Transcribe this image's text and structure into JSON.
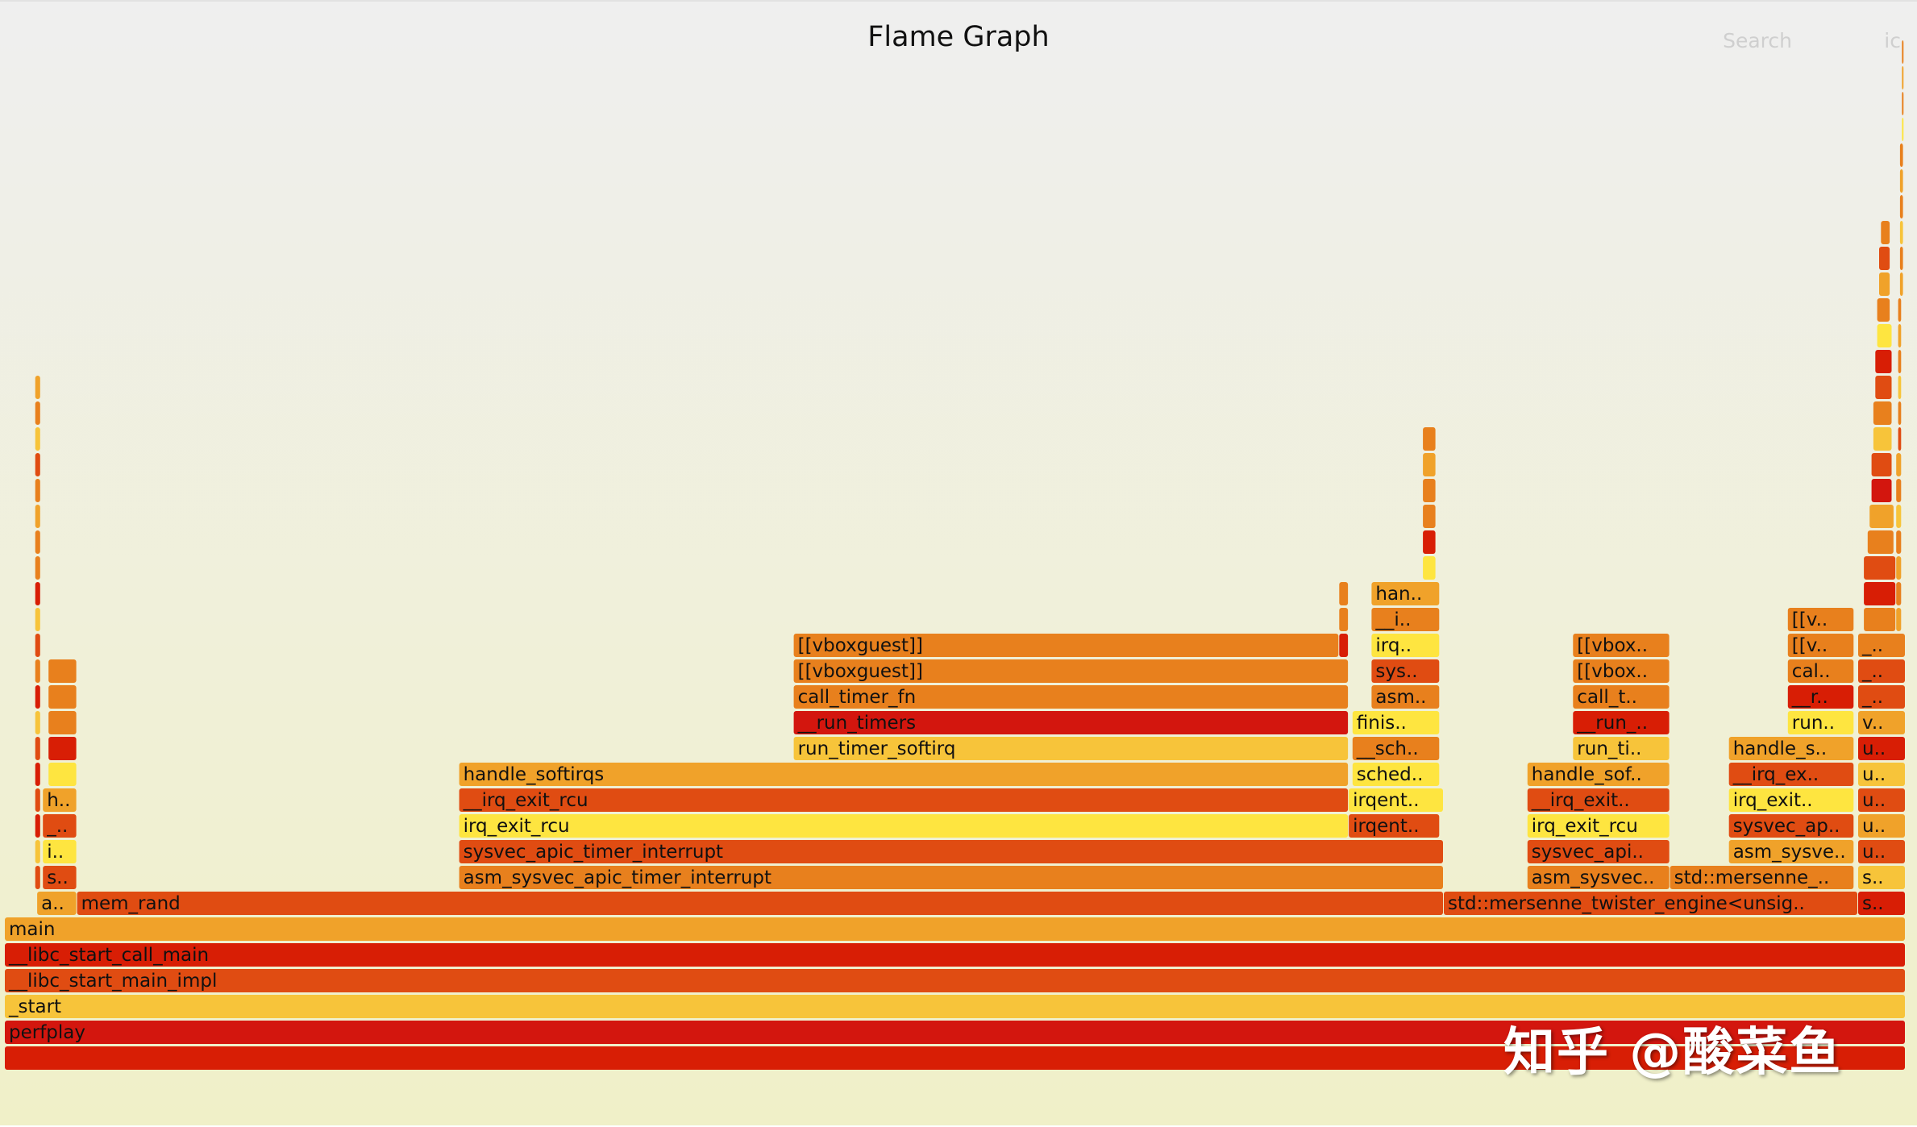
{
  "header": {
    "title": "Flame Graph",
    "search_label": "Search",
    "ic_label": "ic"
  },
  "watermark": "知乎 @酸菜鱼",
  "chart_data": {
    "type": "flamegraph",
    "title": "Flame Graph",
    "x_range": [
      0,
      1000
    ],
    "depth_count": 40,
    "palette": [
      "#d81e05",
      "#e04c12",
      "#e8801d",
      "#f0a22a",
      "#f7c43a",
      "#fee540",
      "#d3160e"
    ],
    "frames": [
      {
        "label": "",
        "start": 0,
        "end": 1000,
        "depth": 0,
        "c": 0
      },
      {
        "label": "perfplay",
        "start": 0,
        "end": 1000,
        "depth": 1,
        "c": 6
      },
      {
        "label": "_start",
        "start": 0,
        "end": 1000,
        "depth": 2,
        "c": 4
      },
      {
        "label": "__libc_start_main_impl",
        "start": 0,
        "end": 1000,
        "depth": 3,
        "c": 1
      },
      {
        "label": "__libc_start_call_main",
        "start": 0,
        "end": 1000,
        "depth": 4,
        "c": 0
      },
      {
        "label": "main",
        "start": 0,
        "end": 1000,
        "depth": 5,
        "c": 3
      },
      {
        "label": "a..",
        "start": 17,
        "end": 38,
        "depth": 6,
        "c": 3
      },
      {
        "label": "mem_rand",
        "start": 38,
        "end": 757,
        "depth": 6,
        "c": 1
      },
      {
        "label": "std::mersenne_twister_engine<unsig..",
        "start": 757,
        "end": 975,
        "depth": 6,
        "c": 1
      },
      {
        "label": "s..",
        "start": 975,
        "end": 1000,
        "depth": 6,
        "c": 0
      },
      {
        "label": "s..",
        "start": 20,
        "end": 38,
        "depth": 7,
        "c": 1
      },
      {
        "label": "i..",
        "start": 20,
        "end": 38,
        "depth": 8,
        "c": 5
      },
      {
        "label": "_..",
        "start": 20,
        "end": 38,
        "depth": 9,
        "c": 1
      },
      {
        "label": "h..",
        "start": 20,
        "end": 38,
        "depth": 10,
        "c": 3
      },
      {
        "label": "",
        "start": 23,
        "end": 38,
        "depth": 11,
        "c": 5
      },
      {
        "label": "",
        "start": 23,
        "end": 38,
        "depth": 12,
        "c": 0
      },
      {
        "label": "",
        "start": 23,
        "end": 38,
        "depth": 13,
        "c": 2
      },
      {
        "label": "",
        "start": 23,
        "end": 38,
        "depth": 14,
        "c": 2
      },
      {
        "label": "",
        "start": 23,
        "end": 38,
        "depth": 15,
        "c": 2
      },
      {
        "label": "",
        "start": 16,
        "end": 19,
        "depth": 7,
        "c": 1
      },
      {
        "label": "",
        "start": 16,
        "end": 19,
        "depth": 8,
        "c": 4
      },
      {
        "label": "",
        "start": 16,
        "end": 19,
        "depth": 9,
        "c": 0
      },
      {
        "label": "",
        "start": 16,
        "end": 19,
        "depth": 10,
        "c": 1
      },
      {
        "label": "",
        "start": 16,
        "end": 19,
        "depth": 11,
        "c": 0
      },
      {
        "label": "",
        "start": 16,
        "end": 19,
        "depth": 12,
        "c": 1
      },
      {
        "label": "",
        "start": 16,
        "end": 19,
        "depth": 13,
        "c": 4
      },
      {
        "label": "",
        "start": 16,
        "end": 19,
        "depth": 14,
        "c": 0
      },
      {
        "label": "",
        "start": 16,
        "end": 19,
        "depth": 15,
        "c": 2
      },
      {
        "label": "",
        "start": 16,
        "end": 19,
        "depth": 16,
        "c": 1
      },
      {
        "label": "",
        "start": 16,
        "end": 19,
        "depth": 17,
        "c": 4
      },
      {
        "label": "",
        "start": 16,
        "end": 19,
        "depth": 18,
        "c": 0
      },
      {
        "label": "",
        "start": 16,
        "end": 19,
        "depth": 19,
        "c": 2
      },
      {
        "label": "",
        "start": 16,
        "end": 19,
        "depth": 20,
        "c": 2
      },
      {
        "label": "",
        "start": 16,
        "end": 19,
        "depth": 21,
        "c": 3
      },
      {
        "label": "",
        "start": 16,
        "end": 19,
        "depth": 22,
        "c": 2
      },
      {
        "label": "",
        "start": 16,
        "end": 19,
        "depth": 23,
        "c": 1
      },
      {
        "label": "",
        "start": 16,
        "end": 19,
        "depth": 24,
        "c": 4
      },
      {
        "label": "",
        "start": 16,
        "end": 19,
        "depth": 25,
        "c": 2
      },
      {
        "label": "",
        "start": 16,
        "end": 19,
        "depth": 26,
        "c": 3
      },
      {
        "label": "asm_sysvec_apic_timer_interrupt",
        "start": 239,
        "end": 757,
        "depth": 7,
        "c": 2
      },
      {
        "label": "sysvec_apic_timer_interrupt",
        "start": 239,
        "end": 757,
        "depth": 8,
        "c": 1
      },
      {
        "label": "irq_exit_rcu",
        "start": 239,
        "end": 707,
        "depth": 9,
        "c": 5
      },
      {
        "label": "__irq_exit_rcu",
        "start": 239,
        "end": 707,
        "depth": 10,
        "c": 1
      },
      {
        "label": "handle_softirqs",
        "start": 239,
        "end": 707,
        "depth": 11,
        "c": 3
      },
      {
        "label": "run_timer_softirq",
        "start": 415,
        "end": 707,
        "depth": 12,
        "c": 4
      },
      {
        "label": "__run_timers",
        "start": 415,
        "end": 707,
        "depth": 13,
        "c": 6
      },
      {
        "label": "call_timer_fn",
        "start": 415,
        "end": 707,
        "depth": 14,
        "c": 2
      },
      {
        "label": "[[vboxguest]]",
        "start": 415,
        "end": 707,
        "depth": 15,
        "c": 2
      },
      {
        "label": "[[vboxguest]]",
        "start": 415,
        "end": 702,
        "depth": 16,
        "c": 2
      },
      {
        "label": "",
        "start": 702,
        "end": 707,
        "depth": 16,
        "c": 0
      },
      {
        "label": "",
        "start": 702,
        "end": 707,
        "depth": 17,
        "c": 2
      },
      {
        "label": "",
        "start": 702,
        "end": 707,
        "depth": 18,
        "c": 2
      },
      {
        "label": "irqent..",
        "start": 707,
        "end": 755,
        "depth": 9,
        "c": 1
      },
      {
        "label": "irqent..",
        "start": 707,
        "end": 757,
        "depth": 10,
        "c": 5
      },
      {
        "label": "sched..",
        "start": 709,
        "end": 755,
        "depth": 11,
        "c": 5
      },
      {
        "label": "__sch..",
        "start": 709,
        "end": 755,
        "depth": 12,
        "c": 2
      },
      {
        "label": "finis..",
        "start": 709,
        "end": 755,
        "depth": 13,
        "c": 5
      },
      {
        "label": "asm..",
        "start": 719,
        "end": 755,
        "depth": 14,
        "c": 2
      },
      {
        "label": "sys..",
        "start": 719,
        "end": 755,
        "depth": 15,
        "c": 1
      },
      {
        "label": "irq..",
        "start": 719,
        "end": 755,
        "depth": 16,
        "c": 5
      },
      {
        "label": "__i..",
        "start": 719,
        "end": 755,
        "depth": 17,
        "c": 2
      },
      {
        "label": "han..",
        "start": 719,
        "end": 755,
        "depth": 18,
        "c": 3
      },
      {
        "label": "",
        "start": 746,
        "end": 753,
        "depth": 19,
        "c": 5
      },
      {
        "label": "",
        "start": 746,
        "end": 753,
        "depth": 20,
        "c": 0
      },
      {
        "label": "",
        "start": 746,
        "end": 753,
        "depth": 21,
        "c": 2
      },
      {
        "label": "",
        "start": 746,
        "end": 753,
        "depth": 22,
        "c": 2
      },
      {
        "label": "",
        "start": 746,
        "end": 753,
        "depth": 23,
        "c": 3
      },
      {
        "label": "",
        "start": 746,
        "end": 753,
        "depth": 24,
        "c": 2
      },
      {
        "label": "asm_sysvec..",
        "start": 801,
        "end": 876,
        "depth": 7,
        "c": 2
      },
      {
        "label": "std::mersenne_..",
        "start": 876,
        "end": 973,
        "depth": 7,
        "c": 2
      },
      {
        "label": "s..",
        "start": 975,
        "end": 1000,
        "depth": 7,
        "c": 4
      },
      {
        "label": "sysvec_api..",
        "start": 801,
        "end": 876,
        "depth": 8,
        "c": 1
      },
      {
        "label": "asm_sysve..",
        "start": 907,
        "end": 973,
        "depth": 8,
        "c": 3
      },
      {
        "label": "u..",
        "start": 975,
        "end": 1000,
        "depth": 8,
        "c": 1
      },
      {
        "label": "irq_exit_rcu",
        "start": 801,
        "end": 876,
        "depth": 9,
        "c": 5
      },
      {
        "label": "sysvec_ap..",
        "start": 907,
        "end": 973,
        "depth": 9,
        "c": 1
      },
      {
        "label": "u..",
        "start": 975,
        "end": 1000,
        "depth": 9,
        "c": 3
      },
      {
        "label": "__irq_exit..",
        "start": 801,
        "end": 876,
        "depth": 10,
        "c": 1
      },
      {
        "label": "irq_exit..",
        "start": 907,
        "end": 973,
        "depth": 10,
        "c": 5
      },
      {
        "label": "u..",
        "start": 975,
        "end": 1000,
        "depth": 10,
        "c": 1
      },
      {
        "label": "handle_sof..",
        "start": 801,
        "end": 876,
        "depth": 11,
        "c": 3
      },
      {
        "label": "__irq_ex..",
        "start": 907,
        "end": 973,
        "depth": 11,
        "c": 1
      },
      {
        "label": "u..",
        "start": 975,
        "end": 1000,
        "depth": 11,
        "c": 4
      },
      {
        "label": "run_ti..",
        "start": 825,
        "end": 876,
        "depth": 12,
        "c": 4
      },
      {
        "label": "handle_s..",
        "start": 907,
        "end": 973,
        "depth": 12,
        "c": 3
      },
      {
        "label": "u..",
        "start": 975,
        "end": 1000,
        "depth": 12,
        "c": 0
      },
      {
        "label": "__run_..",
        "start": 825,
        "end": 876,
        "depth": 13,
        "c": 0
      },
      {
        "label": "run..",
        "start": 938,
        "end": 973,
        "depth": 13,
        "c": 5
      },
      {
        "label": "v..",
        "start": 975,
        "end": 1000,
        "depth": 13,
        "c": 3
      },
      {
        "label": "call_t..",
        "start": 825,
        "end": 876,
        "depth": 14,
        "c": 2
      },
      {
        "label": "__r..",
        "start": 938,
        "end": 973,
        "depth": 14,
        "c": 0
      },
      {
        "label": "_..",
        "start": 975,
        "end": 1000,
        "depth": 14,
        "c": 1
      },
      {
        "label": "[[vbox..",
        "start": 825,
        "end": 876,
        "depth": 15,
        "c": 2
      },
      {
        "label": "cal..",
        "start": 938,
        "end": 973,
        "depth": 15,
        "c": 2
      },
      {
        "label": "_..",
        "start": 975,
        "end": 1000,
        "depth": 15,
        "c": 1
      },
      {
        "label": "[[vbox..",
        "start": 825,
        "end": 876,
        "depth": 16,
        "c": 2
      },
      {
        "label": "[[v..",
        "start": 938,
        "end": 973,
        "depth": 16,
        "c": 2
      },
      {
        "label": "_..",
        "start": 975,
        "end": 1000,
        "depth": 16,
        "c": 2
      },
      {
        "label": "[[v..",
        "start": 938,
        "end": 973,
        "depth": 17,
        "c": 2
      },
      {
        "label": "",
        "start": 978,
        "end": 995,
        "depth": 17,
        "c": 2
      },
      {
        "label": "",
        "start": 978,
        "end": 995,
        "depth": 18,
        "c": 0
      },
      {
        "label": "",
        "start": 978,
        "end": 995,
        "depth": 19,
        "c": 1
      },
      {
        "label": "",
        "start": 980,
        "end": 994,
        "depth": 20,
        "c": 2
      },
      {
        "label": "",
        "start": 981,
        "end": 994,
        "depth": 21,
        "c": 3
      },
      {
        "label": "",
        "start": 982,
        "end": 993,
        "depth": 22,
        "c": 6
      },
      {
        "label": "",
        "start": 982,
        "end": 993,
        "depth": 23,
        "c": 1
      },
      {
        "label": "",
        "start": 983,
        "end": 993,
        "depth": 24,
        "c": 4
      },
      {
        "label": "",
        "start": 983,
        "end": 993,
        "depth": 25,
        "c": 2
      },
      {
        "label": "",
        "start": 984,
        "end": 993,
        "depth": 26,
        "c": 1
      },
      {
        "label": "",
        "start": 984,
        "end": 993,
        "depth": 27,
        "c": 0
      },
      {
        "label": "",
        "start": 985,
        "end": 993,
        "depth": 28,
        "c": 5
      },
      {
        "label": "",
        "start": 985,
        "end": 992,
        "depth": 29,
        "c": 2
      },
      {
        "label": "",
        "start": 986,
        "end": 992,
        "depth": 30,
        "c": 3
      },
      {
        "label": "",
        "start": 986,
        "end": 992,
        "depth": 31,
        "c": 1
      },
      {
        "label": "",
        "start": 987,
        "end": 992,
        "depth": 32,
        "c": 2
      },
      {
        "label": "",
        "start": 995,
        "end": 998,
        "depth": 17,
        "c": 3
      },
      {
        "label": "",
        "start": 995,
        "end": 998,
        "depth": 18,
        "c": 2
      },
      {
        "label": "",
        "start": 995,
        "end": 998,
        "depth": 19,
        "c": 3
      },
      {
        "label": "",
        "start": 995,
        "end": 998,
        "depth": 20,
        "c": 2
      },
      {
        "label": "",
        "start": 995,
        "end": 998,
        "depth": 21,
        "c": 4
      },
      {
        "label": "",
        "start": 995,
        "end": 998,
        "depth": 22,
        "c": 2
      },
      {
        "label": "",
        "start": 995,
        "end": 998,
        "depth": 23,
        "c": 3
      },
      {
        "label": "",
        "start": 996,
        "end": 998,
        "depth": 24,
        "c": 1
      },
      {
        "label": "",
        "start": 996,
        "end": 998,
        "depth": 25,
        "c": 2
      },
      {
        "label": "",
        "start": 996,
        "end": 998,
        "depth": 26,
        "c": 4
      },
      {
        "label": "",
        "start": 996,
        "end": 998,
        "depth": 27,
        "c": 2
      },
      {
        "label": "",
        "start": 996,
        "end": 998,
        "depth": 28,
        "c": 3
      },
      {
        "label": "",
        "start": 996,
        "end": 998,
        "depth": 29,
        "c": 2
      },
      {
        "label": "",
        "start": 997,
        "end": 999,
        "depth": 30,
        "c": 3
      },
      {
        "label": "",
        "start": 997,
        "end": 999,
        "depth": 31,
        "c": 2
      },
      {
        "label": "",
        "start": 997,
        "end": 999,
        "depth": 32,
        "c": 4
      },
      {
        "label": "",
        "start": 997,
        "end": 999,
        "depth": 33,
        "c": 2
      },
      {
        "label": "",
        "start": 997,
        "end": 999,
        "depth": 34,
        "c": 3
      },
      {
        "label": "",
        "start": 997,
        "end": 999,
        "depth": 35,
        "c": 2
      },
      {
        "label": "",
        "start": 998,
        "end": 999,
        "depth": 36,
        "c": 5
      },
      {
        "label": "",
        "start": 998,
        "end": 999,
        "depth": 37,
        "c": 2
      },
      {
        "label": "",
        "start": 998,
        "end": 999,
        "depth": 38,
        "c": 3
      },
      {
        "label": "",
        "start": 998,
        "end": 999,
        "depth": 39,
        "c": 2
      }
    ]
  }
}
